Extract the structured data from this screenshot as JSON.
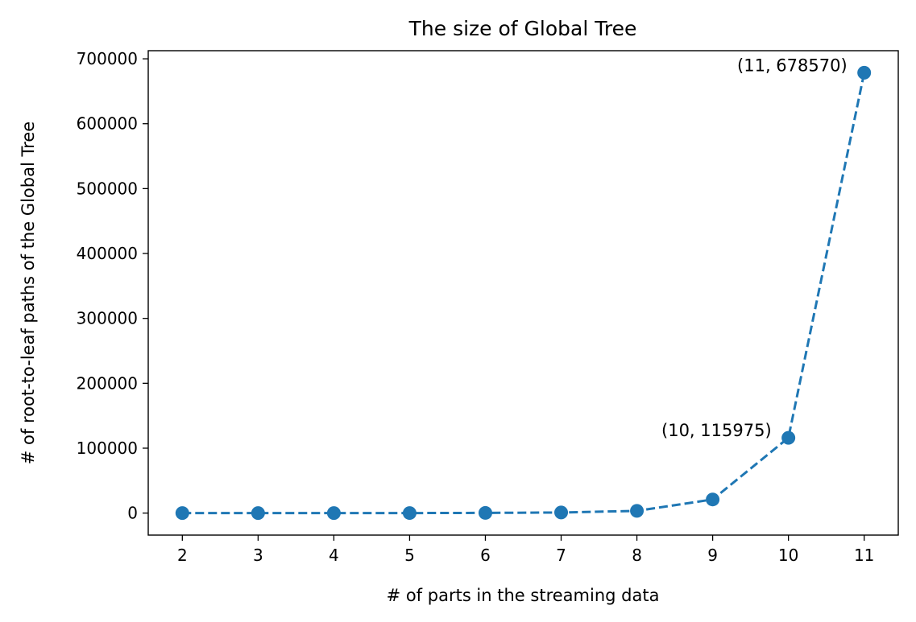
{
  "chart_data": {
    "type": "line",
    "title": "The size of Global Tree",
    "xlabel": "# of parts in the streaming data",
    "ylabel": "# of root-to-leaf paths of the Global Tree",
    "x": [
      2,
      3,
      4,
      5,
      6,
      7,
      8,
      9,
      10,
      11
    ],
    "series": [
      {
        "values": [
          2,
          6,
          20,
          70,
          250,
          900,
          3400,
          21000,
          115975,
          678570
        ],
        "color": "#1f77b4",
        "line_style": "dashed",
        "marker": "circle"
      }
    ],
    "xticks": [
      "2",
      "3",
      "4",
      "5",
      "6",
      "7",
      "8",
      "9",
      "10",
      "11"
    ],
    "yticks": [
      "0",
      "100000",
      "200000",
      "300000",
      "400000",
      "500000",
      "600000",
      "700000"
    ],
    "ytick_values": [
      0,
      100000,
      200000,
      300000,
      400000,
      500000,
      600000,
      700000
    ],
    "xlim": [
      1.55,
      11.45
    ],
    "ylim": [
      -33928,
      712498
    ],
    "grid": false,
    "annotations": [
      {
        "text": "(10, 115975)",
        "x": 10,
        "y": 115975
      },
      {
        "text": "(11, 678570)",
        "x": 11,
        "y": 678570
      }
    ]
  }
}
